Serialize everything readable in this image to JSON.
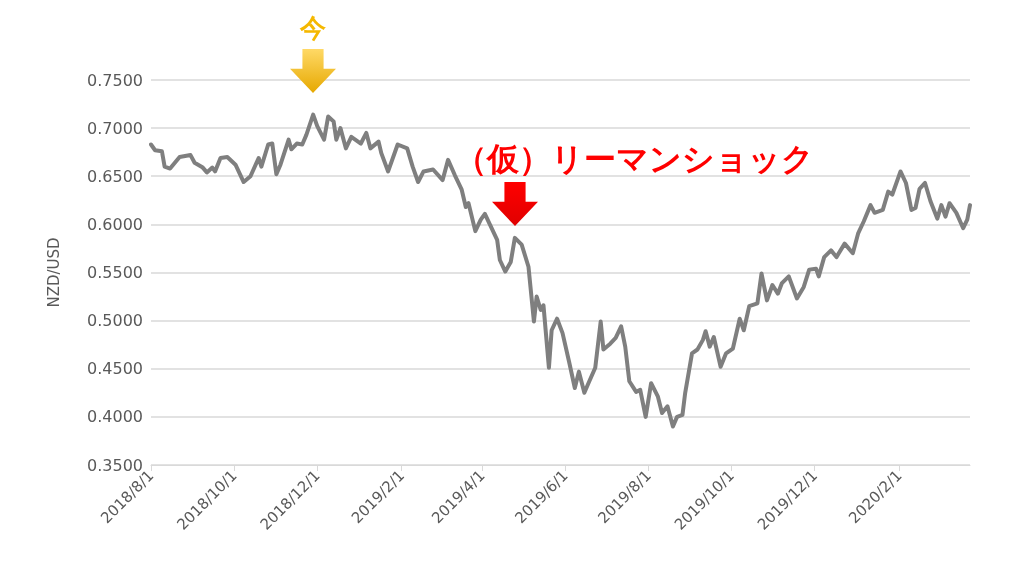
{
  "chart_data": {
    "type": "line",
    "ylabel": "NZD/USD",
    "x": [
      "2018-08-01",
      "2018-08-04",
      "2018-08-09",
      "2018-08-11",
      "2018-08-15",
      "2018-08-22",
      "2018-08-30",
      "2018-09-02",
      "2018-09-08",
      "2018-09-11",
      "2018-09-15",
      "2018-09-17",
      "2018-09-21",
      "2018-09-26",
      "2018-10-02",
      "2018-10-08",
      "2018-10-13",
      "2018-10-19",
      "2018-10-21",
      "2018-10-26",
      "2018-10-29",
      "2018-11-01",
      "2018-11-04",
      "2018-11-10",
      "2018-11-12",
      "2018-11-16",
      "2018-11-20",
      "2018-11-23",
      "2018-11-28",
      "2018-12-01",
      "2018-12-06",
      "2018-12-09",
      "2018-12-13",
      "2018-12-15",
      "2018-12-18",
      "2018-12-22",
      "2018-12-26",
      "2019-01-02",
      "2019-01-06",
      "2019-01-09",
      "2019-01-15",
      "2019-01-17",
      "2019-01-22",
      "2019-01-29",
      "2019-02-05",
      "2019-02-09",
      "2019-02-13",
      "2019-02-17",
      "2019-02-24",
      "2019-03-03",
      "2019-03-07",
      "2019-03-12",
      "2019-03-17",
      "2019-03-20",
      "2019-03-22",
      "2019-03-27",
      "2019-03-31",
      "2019-04-03",
      "2019-04-07",
      "2019-04-12",
      "2019-04-14",
      "2019-04-18",
      "2019-04-22",
      "2019-04-25",
      "2019-04-30",
      "2019-05-05",
      "2019-05-09",
      "2019-05-11",
      "2019-05-14",
      "2019-05-16",
      "2019-05-20",
      "2019-05-22",
      "2019-05-26",
      "2019-05-30",
      "2019-06-04",
      "2019-06-08",
      "2019-06-11",
      "2019-06-15",
      "2019-06-18",
      "2019-06-23",
      "2019-06-27",
      "2019-06-29",
      "2019-07-04",
      "2019-07-08",
      "2019-07-12",
      "2019-07-15",
      "2019-07-18",
      "2019-07-23",
      "2019-07-26",
      "2019-07-30",
      "2019-08-03",
      "2019-08-08",
      "2019-08-11",
      "2019-08-15",
      "2019-08-19",
      "2019-08-22",
      "2019-08-26",
      "2019-08-28",
      "2019-09-02",
      "2019-09-06",
      "2019-09-10",
      "2019-09-12",
      "2019-09-15",
      "2019-09-18",
      "2019-09-23",
      "2019-09-27",
      "2019-10-02",
      "2019-10-07",
      "2019-10-10",
      "2019-10-14",
      "2019-10-20",
      "2019-10-23",
      "2019-10-27",
      "2019-10-31",
      "2019-11-04",
      "2019-11-07",
      "2019-11-12",
      "2019-11-18",
      "2019-11-23",
      "2019-11-27",
      "2019-12-02",
      "2019-12-04",
      "2019-12-08",
      "2019-12-13",
      "2019-12-17",
      "2019-12-23",
      "2019-12-29",
      "2020-01-02",
      "2020-01-06",
      "2020-01-11",
      "2020-01-14",
      "2020-01-20",
      "2020-01-24",
      "2020-01-27",
      "2020-02-02",
      "2020-02-06",
      "2020-02-10",
      "2020-02-13",
      "2020-02-16",
      "2020-02-20",
      "2020-02-24",
      "2020-02-29",
      "2020-03-03",
      "2020-03-06",
      "2020-03-09",
      "2020-03-14",
      "2020-03-19",
      "2020-03-22",
      "2020-03-24"
    ],
    "series": [
      {
        "color": "#7f7f7f",
        "values": [
          0.683,
          0.677,
          0.676,
          0.66,
          0.658,
          0.67,
          0.672,
          0.664,
          0.659,
          0.654,
          0.659,
          0.655,
          0.669,
          0.67,
          0.662,
          0.644,
          0.65,
          0.669,
          0.66,
          0.683,
          0.684,
          0.652,
          0.662,
          0.688,
          0.678,
          0.684,
          0.683,
          0.693,
          0.714,
          0.702,
          0.688,
          0.712,
          0.707,
          0.688,
          0.7,
          0.679,
          0.691,
          0.684,
          0.695,
          0.679,
          0.686,
          0.674,
          0.655,
          0.683,
          0.679,
          0.66,
          0.644,
          0.655,
          0.657,
          0.646,
          0.667,
          0.651,
          0.636,
          0.618,
          0.622,
          0.593,
          0.605,
          0.611,
          0.599,
          0.584,
          0.563,
          0.551,
          0.561,
          0.586,
          0.579,
          0.556,
          0.499,
          0.525,
          0.511,
          0.516,
          0.451,
          0.49,
          0.502,
          0.487,
          0.456,
          0.43,
          0.447,
          0.425,
          0.435,
          0.451,
          0.499,
          0.47,
          0.476,
          0.482,
          0.494,
          0.473,
          0.437,
          0.426,
          0.428,
          0.4,
          0.435,
          0.421,
          0.404,
          0.411,
          0.39,
          0.4,
          0.402,
          0.425,
          0.466,
          0.47,
          0.48,
          0.489,
          0.473,
          0.483,
          0.452,
          0.466,
          0.471,
          0.502,
          0.49,
          0.515,
          0.518,
          0.549,
          0.521,
          0.537,
          0.528,
          0.539,
          0.546,
          0.523,
          0.535,
          0.553,
          0.554,
          0.546,
          0.566,
          0.573,
          0.566,
          0.58,
          0.57,
          0.591,
          0.603,
          0.62,
          0.612,
          0.615,
          0.634,
          0.631,
          0.655,
          0.643,
          0.615,
          0.617,
          0.637,
          0.643,
          0.624,
          0.606,
          0.62,
          0.608,
          0.622,
          0.612,
          0.596,
          0.605,
          0.62
        ]
      }
    ],
    "xlim": [
      "2018-08-01",
      "2020-03-24"
    ],
    "xticks": [
      {
        "value": "2018-08-01",
        "label": "2018/8/1"
      },
      {
        "value": "2018-10-01",
        "label": "2018/10/1"
      },
      {
        "value": "2018-12-01",
        "label": "2018/12/1"
      },
      {
        "value": "2019-02-01",
        "label": "2019/2/1"
      },
      {
        "value": "2019-04-01",
        "label": "2019/4/1"
      },
      {
        "value": "2019-06-01",
        "label": "2019/6/1"
      },
      {
        "value": "2019-08-01",
        "label": "2019/8/1"
      },
      {
        "value": "2019-10-01",
        "label": "2019/10/1"
      },
      {
        "value": "2019-12-01",
        "label": "2019/12/1"
      },
      {
        "value": "2020-02-01",
        "label": "2020/2/1"
      }
    ],
    "ylim": [
      0.35,
      0.75
    ],
    "yticks": [
      {
        "value": 0.35,
        "label": "0.3500"
      },
      {
        "value": 0.4,
        "label": "0.4000"
      },
      {
        "value": 0.45,
        "label": "0.4500"
      },
      {
        "value": 0.5,
        "label": "0.5000"
      },
      {
        "value": 0.55,
        "label": "0.5500"
      },
      {
        "value": 0.6,
        "label": "0.6000"
      },
      {
        "value": 0.65,
        "label": "0.6500"
      },
      {
        "value": 0.7,
        "label": "0.7000"
      },
      {
        "value": 0.75,
        "label": "0.7500"
      }
    ],
    "grid": "y",
    "marker": "none",
    "line_style": "solid",
    "annotations": [
      {
        "text": "今",
        "x": "2018-11-28",
        "y": 0.714
      },
      {
        "text": "（仮）リーマンショック",
        "x": "2019-04-25",
        "y": 0.586
      }
    ]
  }
}
